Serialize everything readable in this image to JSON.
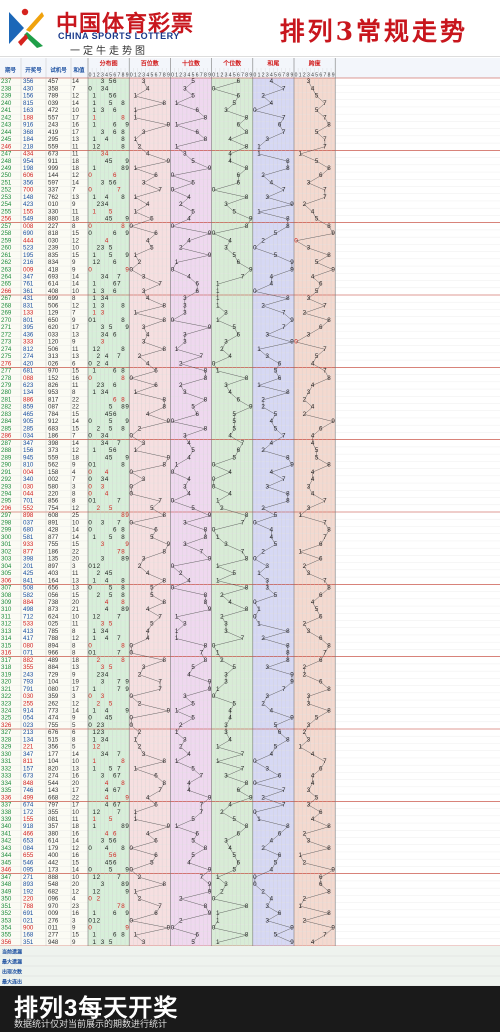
{
  "header": {
    "brand_cn": "中国体育彩票",
    "brand_en": "CHINA SPORTS LOTTERY",
    "brand_slogan": "一定牛走势图",
    "title": "排列3常规走势"
  },
  "columns": {
    "issue": "期号",
    "draw": "开奖号",
    "test": "试机号",
    "sum": "和值",
    "sections": [
      "分布图",
      "百位数",
      "十位数",
      "个位数",
      "和尾",
      "跨度"
    ],
    "digits": [
      "0",
      "1",
      "2",
      "3",
      "4",
      "5",
      "6",
      "7",
      "8",
      "9"
    ]
  },
  "stats": {
    "labels": [
      "当前遗漏",
      "最大遗漏",
      "出现次数",
      "最大连出"
    ]
  },
  "rows": [
    [
      "237",
      "356",
      "457"
    ],
    [
      "238",
      "430",
      "358"
    ],
    [
      "239",
      "156",
      "789"
    ],
    [
      "240",
      "815",
      "039"
    ],
    [
      "241",
      "163",
      "472"
    ],
    [
      "242",
      "188",
      "557"
    ],
    [
      "243",
      "916",
      "243"
    ],
    [
      "244",
      "368",
      "419"
    ],
    [
      "245",
      "184",
      "295"
    ],
    [
      "246",
      "218",
      "559"
    ],
    [
      "247",
      "434",
      "673"
    ],
    [
      "248",
      "954",
      "911"
    ],
    [
      "249",
      "198",
      "999"
    ],
    [
      "250",
      "606",
      "144"
    ],
    [
      "251",
      "356",
      "597"
    ],
    [
      "252",
      "700",
      "337"
    ],
    [
      "253",
      "148",
      "762"
    ],
    [
      "254",
      "423",
      "010"
    ],
    [
      "255",
      "155",
      "330"
    ],
    [
      "256",
      "549",
      "880"
    ],
    [
      "257",
      "008",
      "227"
    ],
    [
      "258",
      "690",
      "818"
    ],
    [
      "259",
      "444",
      "030"
    ],
    [
      "260",
      "523",
      "239"
    ],
    [
      "261",
      "195",
      "835"
    ],
    [
      "262",
      "216",
      "834"
    ],
    [
      "263",
      "009",
      "418"
    ],
    [
      "264",
      "347",
      "693"
    ],
    [
      "265",
      "761",
      "614"
    ],
    [
      "266",
      "361",
      "408"
    ],
    [
      "267",
      "431",
      "699"
    ],
    [
      "268",
      "831",
      "506"
    ],
    [
      "269",
      "133",
      "129"
    ],
    [
      "270",
      "801",
      "650"
    ],
    [
      "271",
      "395",
      "620"
    ],
    [
      "272",
      "436",
      "033"
    ],
    [
      "273",
      "333",
      "120"
    ],
    [
      "274",
      "812",
      "506"
    ],
    [
      "275",
      "274",
      "313"
    ],
    [
      "276",
      "420",
      "026"
    ],
    [
      "277",
      "681",
      "970"
    ],
    [
      "278",
      "088",
      "152"
    ],
    [
      "279",
      "623",
      "826"
    ],
    [
      "280",
      "134",
      "953"
    ],
    [
      "281",
      "886",
      "817"
    ],
    [
      "282",
      "859",
      "087"
    ],
    [
      "283",
      "465",
      "784"
    ],
    [
      "284",
      "905",
      "912"
    ],
    [
      "285",
      "285",
      "683"
    ],
    [
      "286",
      "034",
      "186"
    ],
    [
      "287",
      "347",
      "398"
    ],
    [
      "288",
      "156",
      "373"
    ],
    [
      "289",
      "945",
      "559"
    ],
    [
      "290",
      "810",
      "562"
    ],
    [
      "291",
      "004",
      "158"
    ],
    [
      "292",
      "340",
      "002"
    ],
    [
      "293",
      "030",
      "580"
    ],
    [
      "294",
      "044",
      "220"
    ],
    [
      "295",
      "701",
      "856"
    ],
    [
      "296",
      "552",
      "754"
    ],
    [
      "297",
      "898",
      "608"
    ],
    [
      "298",
      "037",
      "891"
    ],
    [
      "299",
      "680",
      "428"
    ],
    [
      "300",
      "581",
      "877"
    ],
    [
      "301",
      "933",
      "755"
    ],
    [
      "302",
      "877",
      "186"
    ],
    [
      "303",
      "398",
      "135"
    ],
    [
      "304",
      "201",
      "897"
    ],
    [
      "305",
      "425",
      "403"
    ],
    [
      "306",
      "841",
      "164"
    ],
    [
      "307",
      "508",
      "656"
    ],
    [
      "308",
      "582",
      "056"
    ],
    [
      "309",
      "884",
      "738"
    ],
    [
      "310",
      "498",
      "873"
    ],
    [
      "311",
      "712",
      "624"
    ],
    [
      "312",
      "533",
      "025"
    ],
    [
      "313",
      "413",
      "785"
    ],
    [
      "314",
      "417",
      "788"
    ],
    [
      "315",
      "080",
      "894"
    ],
    [
      "316",
      "071",
      "966"
    ],
    [
      "317",
      "882",
      "489"
    ],
    [
      "318",
      "355",
      "884"
    ],
    [
      "319",
      "243",
      "729"
    ],
    [
      "320",
      "793",
      "104"
    ],
    [
      "321",
      "791",
      "080"
    ],
    [
      "322",
      "030",
      "359"
    ],
    [
      "323",
      "255",
      "262"
    ],
    [
      "324",
      "914",
      "773"
    ],
    [
      "325",
      "054",
      "474"
    ],
    [
      "326",
      "023",
      "755"
    ],
    [
      "327",
      "213",
      "676"
    ],
    [
      "328",
      "134",
      "515"
    ],
    [
      "329",
      "221",
      "356"
    ],
    [
      "330",
      "347",
      "177"
    ],
    [
      "331",
      "811",
      "104"
    ],
    [
      "332",
      "157",
      "820"
    ],
    [
      "333",
      "673",
      "274"
    ],
    [
      "334",
      "848",
      "544"
    ],
    [
      "335",
      "746",
      "143"
    ],
    [
      "336",
      "499",
      "668"
    ],
    [
      "337",
      "674",
      "797"
    ],
    [
      "338",
      "172",
      "355"
    ],
    [
      "339",
      "155",
      "081"
    ],
    [
      "340",
      "918",
      "357"
    ],
    [
      "341",
      "466",
      "380"
    ],
    [
      "342",
      "653",
      "614"
    ],
    [
      "343",
      "084",
      "179"
    ],
    [
      "344",
      "655",
      "400"
    ],
    [
      "345",
      "546",
      "442"
    ],
    [
      "346",
      "095",
      "173"
    ],
    [
      "347",
      "271",
      "888"
    ],
    [
      "348",
      "893",
      "548"
    ],
    [
      "349",
      "192",
      "682"
    ],
    [
      "350",
      "220",
      "096"
    ],
    [
      "351",
      "788",
      "970"
    ],
    [
      "352",
      "691",
      "009"
    ],
    [
      "353",
      "021",
      "276"
    ],
    [
      "354",
      "900",
      "011"
    ],
    [
      "355",
      "168",
      "277"
    ],
    [
      "356",
      "351",
      "948"
    ]
  ],
  "chart_data": {
    "type": "table",
    "sections": [
      "分布图",
      "百位数",
      "十位数",
      "个位数",
      "和尾",
      "跨度"
    ],
    "section_colors": [
      "#d7efd9",
      "#f6dfe0",
      "#efd8ef",
      "#d8ecd6",
      "#d6d8f4",
      "#f4d9cf"
    ],
    "accent_red": "#d21e1e"
  },
  "footer": {
    "title": "排列3每天开奖",
    "note": "数据统计仅对当前展示的期数进行统计"
  }
}
